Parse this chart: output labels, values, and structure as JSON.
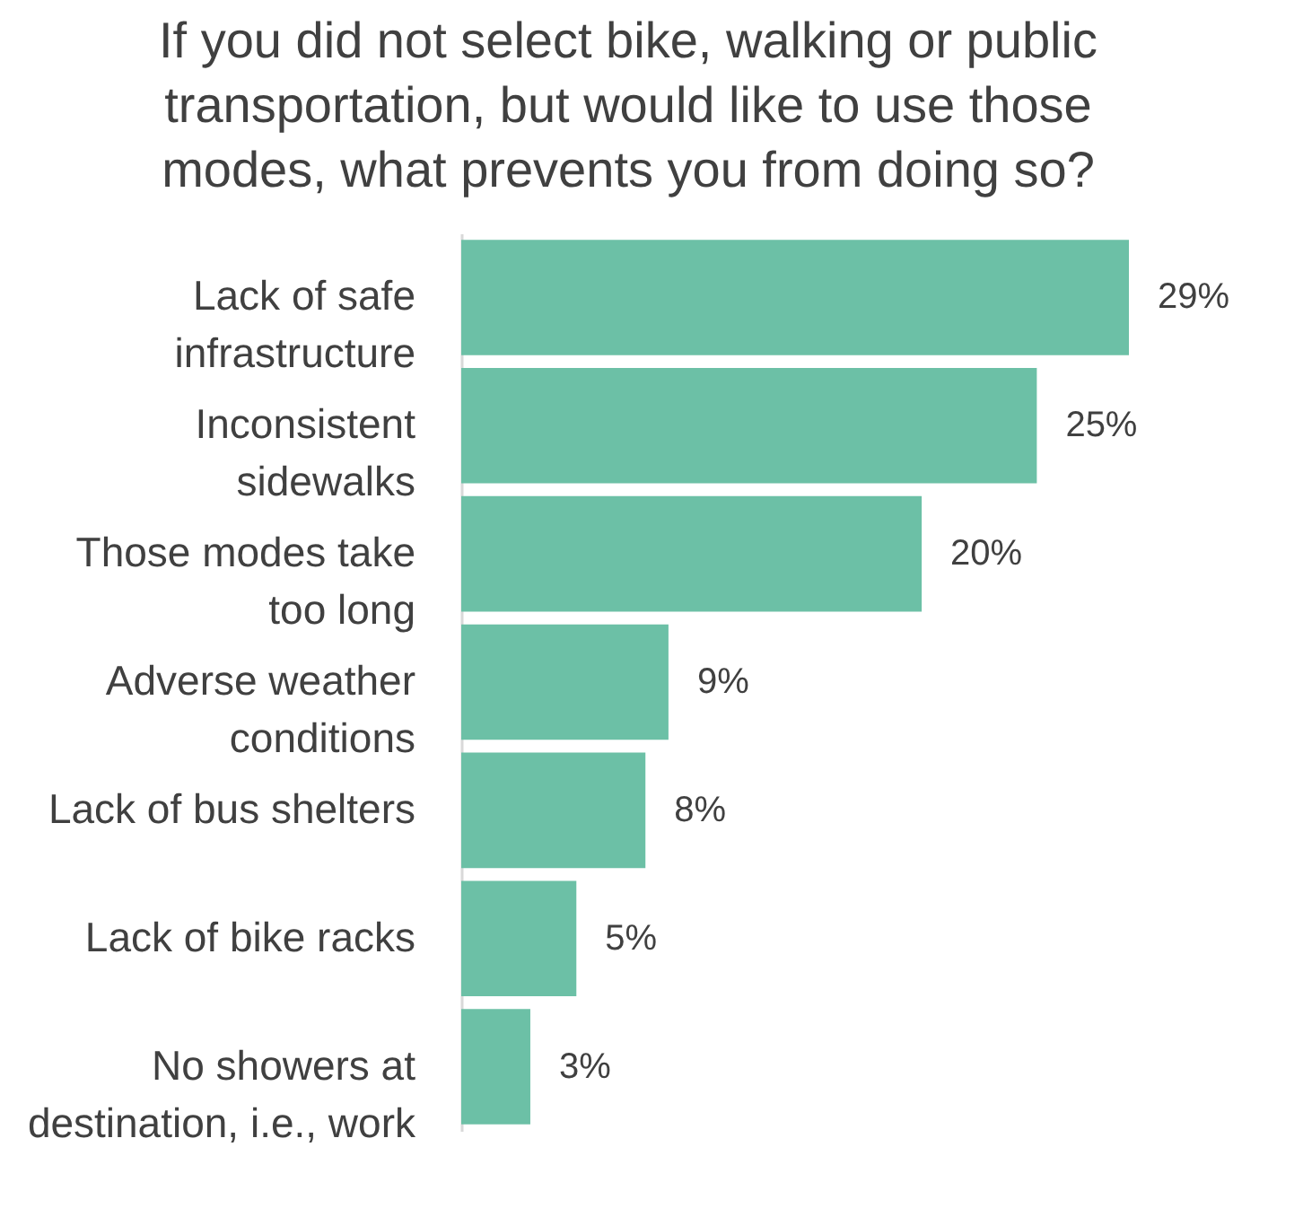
{
  "chart_data": {
    "type": "bar",
    "orientation": "horizontal",
    "title": "If you did not select bike, walking or public transportation, but would like to use those modes, what prevents you from doing so?",
    "categories": [
      "Lack of safe infrastructure",
      "Inconsistent sidewalks",
      "Those modes take too long",
      "Adverse weather conditions",
      "Lack of bus shelters",
      "Lack of bike racks",
      "No showers at destination, i.e., work"
    ],
    "values": [
      29,
      25,
      20,
      9,
      8,
      5,
      3
    ],
    "value_labels": [
      "29%",
      "25%",
      "20%",
      "9%",
      "8%",
      "5%",
      "3%"
    ],
    "color": "#6cc0a6"
  }
}
